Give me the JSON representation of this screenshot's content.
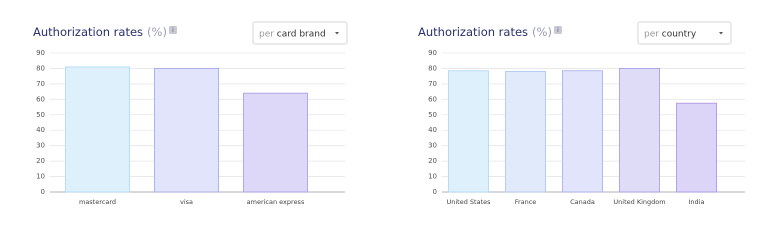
{
  "chart_data": [
    {
      "type": "bar",
      "title": "Authorization rates",
      "unit": "(%)",
      "dropdown": {
        "prefix": "per",
        "value": "card brand"
      },
      "categories": [
        "mastercard",
        "visa",
        "american express"
      ],
      "values": [
        81,
        80,
        64
      ],
      "colors": [
        "#dff0fd",
        "#e1e4fb",
        "#ddd8f8"
      ],
      "edge_colors": [
        "#a9d9f5",
        "#9ea4e9",
        "#a597e6"
      ],
      "ylim": [
        0,
        90
      ],
      "yticks": [
        0,
        10,
        20,
        30,
        40,
        50,
        60,
        70,
        80,
        90
      ],
      "grid": true
    },
    {
      "type": "bar",
      "title": "Authorization rates",
      "unit": "(%)",
      "dropdown": {
        "prefix": "per",
        "value": "country"
      },
      "categories": [
        "United States",
        "France",
        "Canada",
        "United Kingdom",
        "India"
      ],
      "values": [
        78.5,
        78,
        78.5,
        80,
        57.5
      ],
      "colors": [
        "#dff0fd",
        "#e0eafb",
        "#e1e4fb",
        "#dfdcf8",
        "#ddd5f8"
      ],
      "edge_colors": [
        "#a9d9f5",
        "#a8c4ef",
        "#a4abea",
        "#9e98e8",
        "#a58fe5"
      ],
      "ylim": [
        0,
        90
      ],
      "yticks": [
        0,
        10,
        20,
        30,
        40,
        50,
        60,
        70,
        80,
        90
      ],
      "grid": true
    }
  ]
}
